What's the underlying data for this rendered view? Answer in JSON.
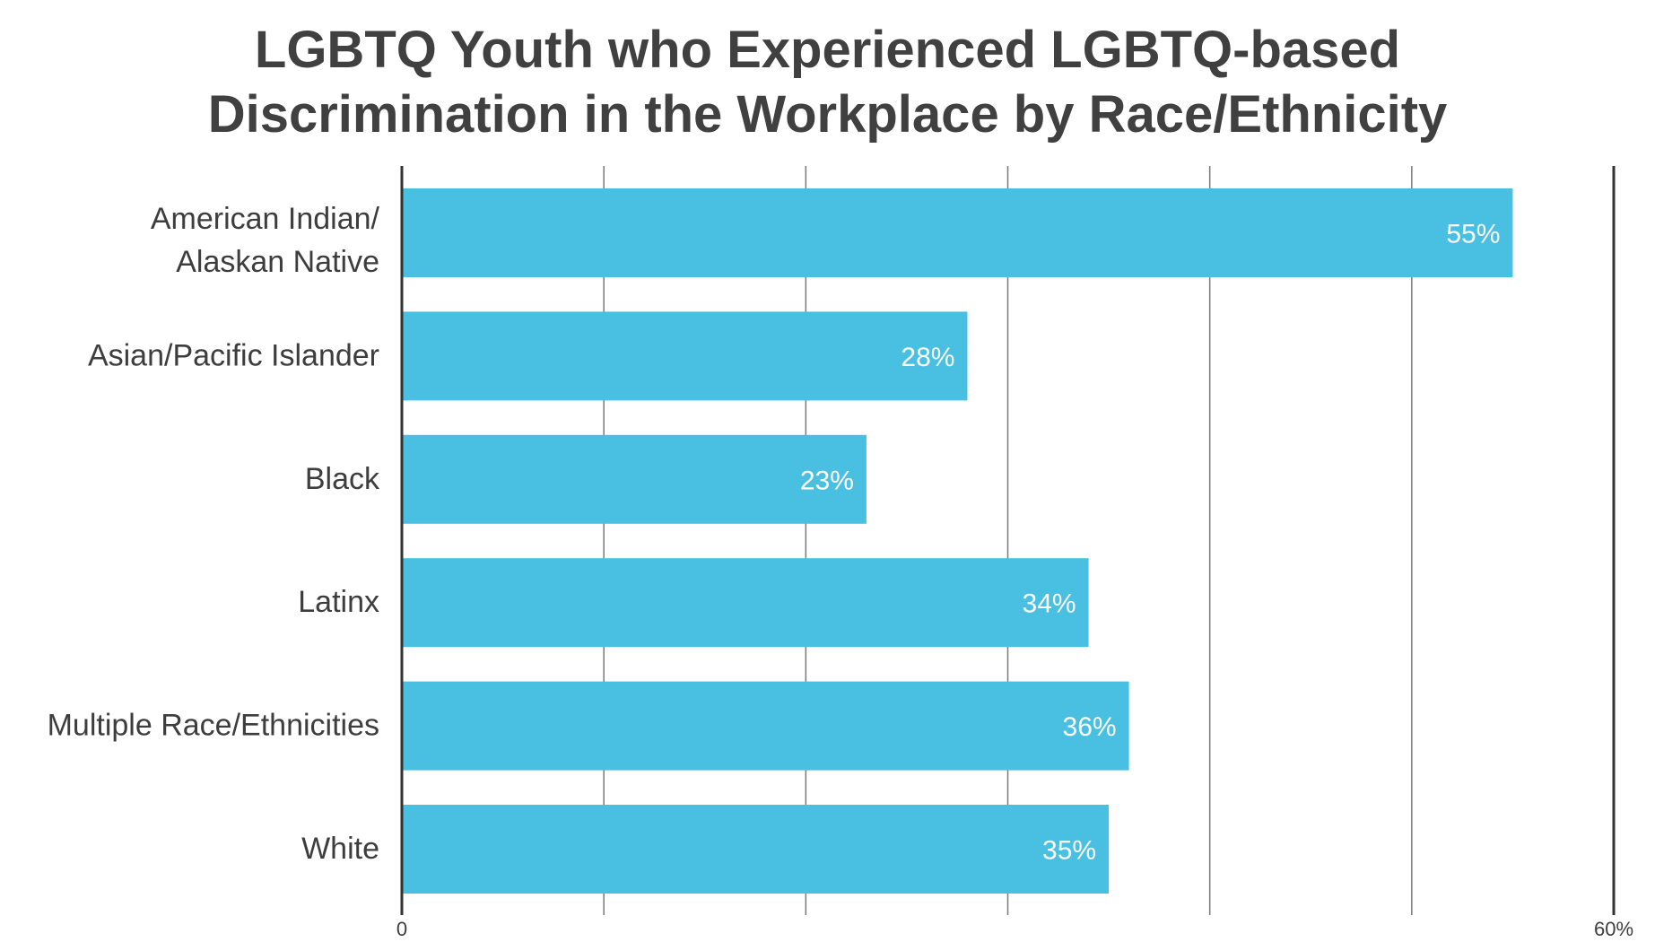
{
  "chart_data": {
    "type": "bar",
    "orientation": "horizontal",
    "title_lines": [
      "LGBTQ Youth who Experienced LGBTQ-based",
      "Discrimination in the Workplace by Race/Ethnicity"
    ],
    "categories": [
      [
        "American Indian/",
        "Alaskan Native"
      ],
      [
        "Asian/Pacific Islander"
      ],
      [
        "Black"
      ],
      [
        "Latinx"
      ],
      [
        "Multiple Race/Ethnicities"
      ],
      [
        "White"
      ]
    ],
    "values": [
      55,
      28,
      23,
      34,
      36,
      35
    ],
    "value_labels": [
      "55%",
      "28%",
      "23%",
      "34%",
      "36%",
      "35%"
    ],
    "xlim": [
      0,
      60
    ],
    "tick_labels": [
      "0",
      "60%"
    ],
    "gridlines": [
      10,
      20,
      30,
      40,
      50
    ],
    "grid": true,
    "legend": "none",
    "colors": {
      "bar": "#49c0e1",
      "grid": "#7a7a7a",
      "axis": "#333333",
      "value_text": "#ffffff"
    }
  }
}
